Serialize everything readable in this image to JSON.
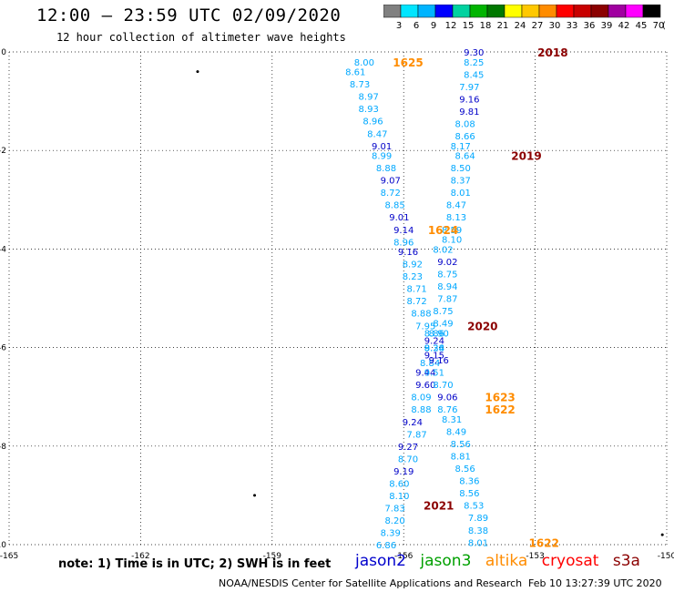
{
  "header": {
    "title": "12:00 – 23:59 UTC 02/09/2020",
    "subtitle": "12 hour collection of altimeter wave heights"
  },
  "colorbar": {
    "labels": [
      "3",
      "6",
      "9",
      "12",
      "15",
      "18",
      "21",
      "24",
      "27",
      "30",
      "33",
      "36",
      "39",
      "42",
      "45",
      "70"
    ],
    "unit": "(ft)",
    "colors": [
      "#808080",
      "#00e5ff",
      "#00b4ff",
      "#0000ff",
      "#00d2a0",
      "#00b400",
      "#007800",
      "#ffff00",
      "#ffc800",
      "#ff8c00",
      "#ff0000",
      "#c80000",
      "#8b0000",
      "#a000a0",
      "#ff00ff",
      "#000000"
    ]
  },
  "map": {
    "x_ticks": [
      "-165",
      "-162",
      "-159",
      "-156",
      "-153",
      "-150"
    ],
    "y_ticks": [
      "0",
      "-2",
      "-4",
      "-6",
      "-8",
      "-10"
    ],
    "xlim": [
      -165,
      -150
    ],
    "ylim": [
      -10,
      0
    ],
    "grid": true
  },
  "tracks": {
    "jason2": {
      "color": "#00b4ff",
      "points": [
        [
          "8.00",
          -156.9,
          -0.2
        ],
        [
          "8.61",
          -157.1,
          -0.4
        ],
        [
          "8.73",
          -157.0,
          -0.65
        ],
        [
          "8.97",
          -156.8,
          -0.9
        ],
        [
          "8.93",
          -156.8,
          -1.15
        ],
        [
          "8.96",
          -156.7,
          -1.4
        ],
        [
          "8.47",
          -156.6,
          -1.65
        ],
        [
          "9.01",
          -156.5,
          -1.9
        ],
        [
          "8.99",
          -156.5,
          -2.1
        ],
        [
          "8.88",
          -156.4,
          -2.35
        ],
        [
          "9.07",
          -156.3,
          -2.6
        ],
        [
          "8.72",
          -156.3,
          -2.85
        ],
        [
          "8.85",
          -156.2,
          -3.1
        ],
        [
          "9.01",
          -156.1,
          -3.35
        ],
        [
          "9.14",
          -156.0,
          -3.6
        ],
        [
          "8.96",
          -156.0,
          -3.85
        ],
        [
          "9.16",
          -155.9,
          -4.05
        ],
        [
          "8.92",
          -155.8,
          -4.3
        ],
        [
          "8.23",
          -155.8,
          -4.55
        ],
        [
          "8.71",
          -155.7,
          -4.8
        ],
        [
          "8.72",
          -155.7,
          -5.05
        ],
        [
          "8.88",
          -155.6,
          -5.3
        ],
        [
          "7.95",
          -155.5,
          -5.55
        ],
        [
          "8.86",
          -155.3,
          -5.7
        ],
        [
          "9.24",
          -155.3,
          -5.85
        ],
        [
          "8.24",
          -155.3,
          -6.0
        ],
        [
          "9.15",
          -155.3,
          -6.15
        ],
        [
          "8.84",
          -155.4,
          -6.3
        ],
        [
          "9.44",
          -155.5,
          -6.5
        ],
        [
          "9.60",
          -155.5,
          -6.75
        ],
        [
          "8.09",
          -155.6,
          -7.0
        ],
        [
          "8.88",
          -155.6,
          -7.25
        ],
        [
          "9.24",
          -155.8,
          -7.5
        ],
        [
          "7.87",
          -155.7,
          -7.75
        ],
        [
          "9.27",
          -155.9,
          -8.0
        ],
        [
          "8.70",
          -155.9,
          -8.25
        ],
        [
          "9.19",
          -156.0,
          -8.5
        ],
        [
          "8.60",
          -156.1,
          -8.75
        ],
        [
          "8.10",
          -156.1,
          -9.0
        ],
        [
          "7.83",
          -156.2,
          -9.25
        ],
        [
          "8.20",
          -156.2,
          -9.5
        ],
        [
          "8.39",
          -156.3,
          -9.75
        ],
        [
          "6.86",
          -156.4,
          -10.0
        ]
      ]
    },
    "jason3": {
      "color": "#00b4ff",
      "points": [
        [
          "9.30",
          -154.4,
          0.0
        ],
        [
          "8.25",
          -154.4,
          -0.2
        ],
        [
          "8.45",
          -154.4,
          -0.45
        ],
        [
          "7.97",
          -154.5,
          -0.7
        ],
        [
          "9.16",
          -154.5,
          -0.95
        ],
        [
          "9.81",
          -154.5,
          -1.2
        ],
        [
          "8.08",
          -154.6,
          -1.45
        ],
        [
          "8.66",
          -154.6,
          -1.7
        ],
        [
          "8.17",
          -154.7,
          -1.9
        ],
        [
          "8.64",
          -154.6,
          -2.1
        ],
        [
          "8.50",
          -154.7,
          -2.35
        ],
        [
          "8.37",
          -154.7,
          -2.6
        ],
        [
          "8.01",
          -154.7,
          -2.85
        ],
        [
          "8.47",
          -154.8,
          -3.1
        ],
        [
          "8.13",
          -154.8,
          -3.35
        ],
        [
          "8.59",
          -154.9,
          -3.6
        ],
        [
          "8.10",
          -154.9,
          -3.8
        ],
        [
          "8.02",
          -155.1,
          -4.0
        ],
        [
          "9.02",
          -155.0,
          -4.25
        ],
        [
          "8.75",
          -155.0,
          -4.5
        ],
        [
          "8.94",
          -155.0,
          -4.75
        ],
        [
          "7.87",
          -155.0,
          -5.0
        ],
        [
          "8.75",
          -155.1,
          -5.25
        ],
        [
          "8.49",
          -155.1,
          -5.5
        ],
        [
          "8.90",
          -155.2,
          -5.7
        ],
        [
          "9.38",
          -155.3,
          -6.0
        ],
        [
          "9.16",
          -155.2,
          -6.25
        ],
        [
          "9.51",
          -155.3,
          -6.5
        ],
        [
          "8.70",
          -155.1,
          -6.75
        ],
        [
          "9.06",
          -155.0,
          -7.0
        ],
        [
          "8.76",
          -155.0,
          -7.25
        ],
        [
          "8.31",
          -154.9,
          -7.45
        ],
        [
          "8.49",
          -154.8,
          -7.7
        ],
        [
          "8.56",
          -154.7,
          -7.95
        ],
        [
          "8.81",
          -154.7,
          -8.2
        ],
        [
          "8.56",
          -154.6,
          -8.45
        ],
        [
          "8.36",
          -154.5,
          -8.7
        ],
        [
          "8.56",
          -154.5,
          -8.95
        ],
        [
          "8.53",
          -154.4,
          -9.2
        ],
        [
          "7.89",
          -154.3,
          -9.45
        ],
        [
          "8.38",
          -154.3,
          -9.7
        ],
        [
          "8.01",
          -154.3,
          -9.95
        ]
      ]
    },
    "dark_blue_labels": [
      "9.30",
      "9.81",
      "9.16",
      "9.01",
      "9.07",
      "9.14",
      "9.16",
      "9.01",
      "9.02",
      "9.24",
      "9.15",
      "9.44",
      "9.60",
      "9.24",
      "9.27",
      "9.19",
      "9.06",
      "9.49"
    ],
    "time_labels": [
      {
        "text": "2018",
        "color": "#8b0000",
        "lon": -152.6,
        "lat": 0.0
      },
      {
        "text": "1625",
        "color": "#ff8c00",
        "lon": -155.9,
        "lat": -0.2
      },
      {
        "text": "2019",
        "color": "#8b0000",
        "lon": -153.2,
        "lat": -2.1
      },
      {
        "text": "1624",
        "color": "#ff8c00",
        "lon": -155.1,
        "lat": -3.6
      },
      {
        "text": "2020",
        "color": "#8b0000",
        "lon": -154.2,
        "lat": -5.55
      },
      {
        "text": "1623",
        "color": "#ff8c00",
        "lon": -153.8,
        "lat": -7.0
      },
      {
        "text": "1622",
        "color": "#ff8c00",
        "lon": -153.8,
        "lat": -7.25
      },
      {
        "text": "2021",
        "color": "#8b0000",
        "lon": -155.2,
        "lat": -9.2
      },
      {
        "text": "1622",
        "color": "#ff8c00",
        "lon": -152.8,
        "lat": -9.95
      }
    ]
  },
  "note": "note: 1) Time is in UTC; 2) SWH is in feet",
  "legend": [
    {
      "name": "jason2",
      "color": "#0000cc"
    },
    {
      "name": "jason3",
      "color": "#00a000"
    },
    {
      "name": "altika",
      "color": "#ff8c00"
    },
    {
      "name": "cryosat",
      "color": "#ff0000"
    },
    {
      "name": "s3a",
      "color": "#8b0000"
    }
  ],
  "footer": {
    "credit": "NOAA/NESDIS Center for Satellite Applications and Research",
    "timestamp": "Feb 10 13:27:39 UTC 2020"
  }
}
